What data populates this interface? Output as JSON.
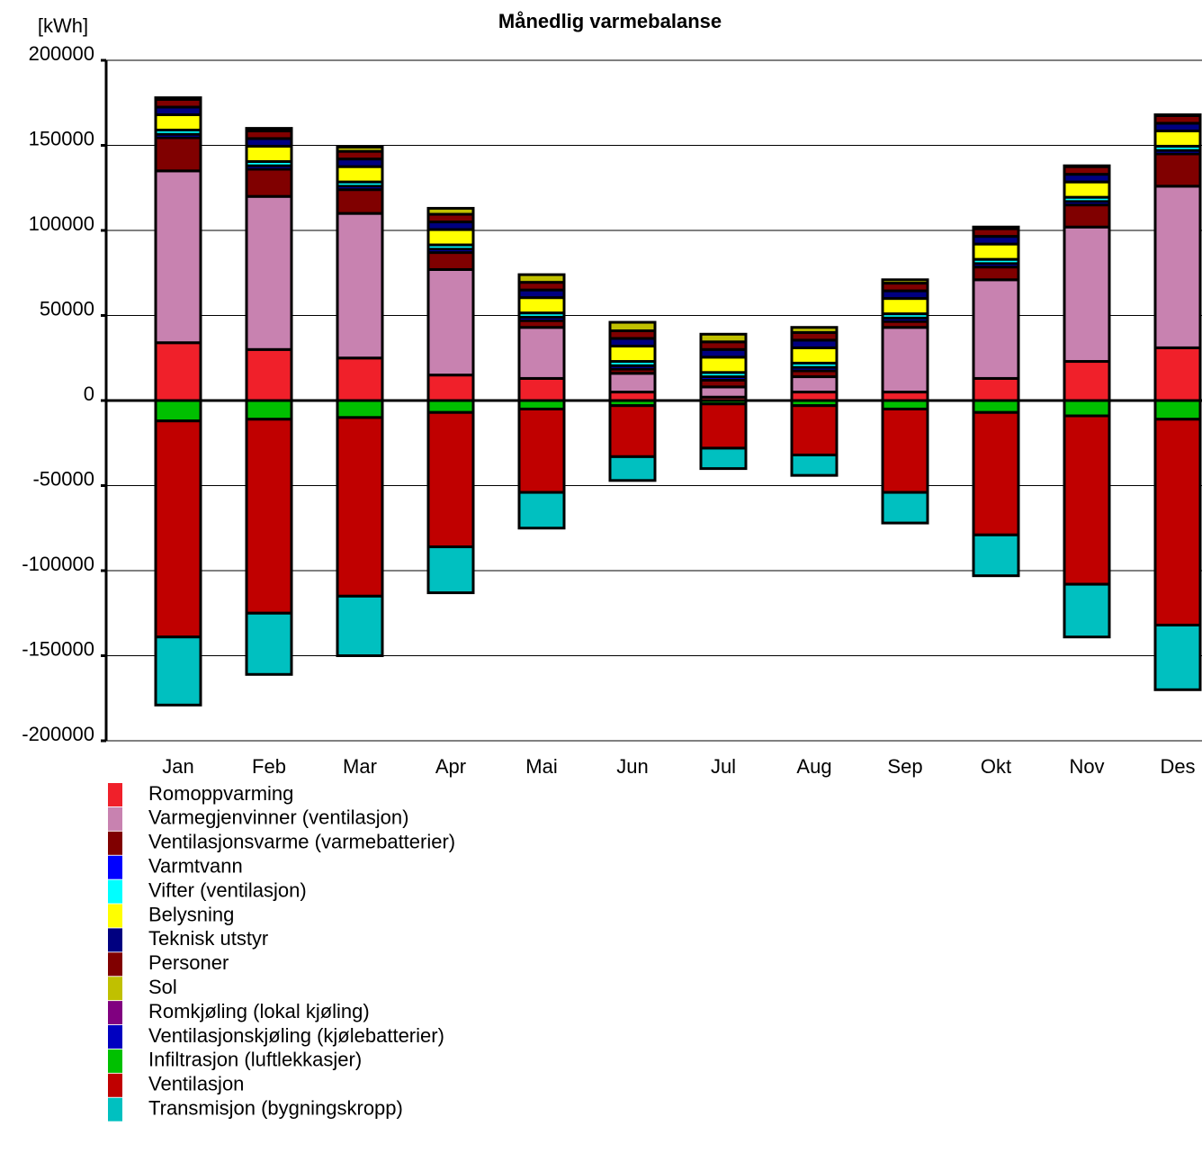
{
  "chart_data": {
    "type": "bar",
    "stacked": true,
    "title": "Månedlig varmebalanse",
    "y_label": "[kWh]",
    "categories": [
      "Jan",
      "Feb",
      "Mar",
      "Apr",
      "Mai",
      "Jun",
      "Jul",
      "Aug",
      "Sep",
      "Okt",
      "Nov",
      "Des"
    ],
    "ylim": [
      -200000,
      200000
    ],
    "yticks": [
      -200000,
      -150000,
      -100000,
      -50000,
      0,
      50000,
      100000,
      150000,
      200000
    ],
    "grid": true,
    "series": [
      {
        "name": "Romoppvarming",
        "color": "#f0202a",
        "values": [
          34000,
          30000,
          25000,
          15000,
          13000,
          5000,
          2000,
          5000,
          5000,
          13000,
          23000,
          31000
        ]
      },
      {
        "name": "Varmegjenvinner (ventilasjon)",
        "color": "#c882b0",
        "values": [
          101000,
          90000,
          85000,
          62000,
          30000,
          11000,
          6000,
          9000,
          38000,
          58000,
          79000,
          95000
        ]
      },
      {
        "name": "Ventilasjonsvarme (varmebatterier)",
        "color": "#800000",
        "values": [
          19500,
          16000,
          14000,
          10000,
          4000,
          2500,
          4000,
          3500,
          3500,
          7500,
          13000,
          19000
        ]
      },
      {
        "name": "Varmtvann",
        "color": "#0000ff",
        "values": [
          2000,
          2000,
          2000,
          2000,
          2000,
          2000,
          2000,
          2000,
          2000,
          2000,
          2000,
          2000
        ]
      },
      {
        "name": "Vifter (ventilasjon)",
        "color": "#00ffff",
        "values": [
          2500,
          2500,
          2500,
          2500,
          2500,
          2500,
          2500,
          2500,
          2500,
          2500,
          2500,
          2500
        ]
      },
      {
        "name": "Belysning",
        "color": "#ffff00",
        "values": [
          9000,
          9000,
          9000,
          9000,
          9000,
          9000,
          9000,
          9000,
          9000,
          9000,
          9000,
          9000
        ]
      },
      {
        "name": "Teknisk utstyr",
        "color": "#000080",
        "values": [
          4500,
          4500,
          4500,
          4500,
          4500,
          4500,
          4500,
          4500,
          4500,
          4500,
          4500,
          4500
        ]
      },
      {
        "name": "Personer",
        "color": "#800000",
        "values": [
          4500,
          4500,
          4500,
          4500,
          4500,
          4500,
          4500,
          4500,
          4500,
          4500,
          4500,
          4500
        ]
      },
      {
        "name": "Sol",
        "color": "#c0c000",
        "values": [
          1000,
          1500,
          2500,
          3500,
          4500,
          5000,
          4500,
          3000,
          2000,
          1000,
          500,
          500
        ]
      },
      {
        "name": "Romkjøling (lokal kjøling)",
        "color": "#800080",
        "values": [
          0,
          0,
          0,
          0,
          0,
          0,
          0,
          0,
          0,
          0,
          0,
          0
        ]
      },
      {
        "name": "Ventilasjonskjøling (kjølebatterier)",
        "color": "#0000c0",
        "values": [
          0,
          0,
          0,
          0,
          0,
          0,
          0,
          0,
          0,
          0,
          0,
          0
        ]
      },
      {
        "name": "Infiltrasjon (luftlekkasjer)",
        "color": "#00c000",
        "values": [
          -12000,
          -11000,
          -10000,
          -7000,
          -5000,
          -3000,
          -2000,
          -3000,
          -5000,
          -7000,
          -9000,
          -11000
        ]
      },
      {
        "name": "Ventilasjon",
        "color": "#c00000",
        "values": [
          -127000,
          -114000,
          -105000,
          -79000,
          -49000,
          -30000,
          -26000,
          -29000,
          -49000,
          -72000,
          -99000,
          -121000
        ]
      },
      {
        "name": "Transmisjon (bygningskropp)",
        "color": "#00c0c0",
        "values": [
          -40000,
          -36000,
          -35000,
          -27000,
          -21000,
          -14000,
          -12000,
          -12000,
          -18000,
          -24000,
          -31000,
          -38000
        ]
      }
    ]
  }
}
